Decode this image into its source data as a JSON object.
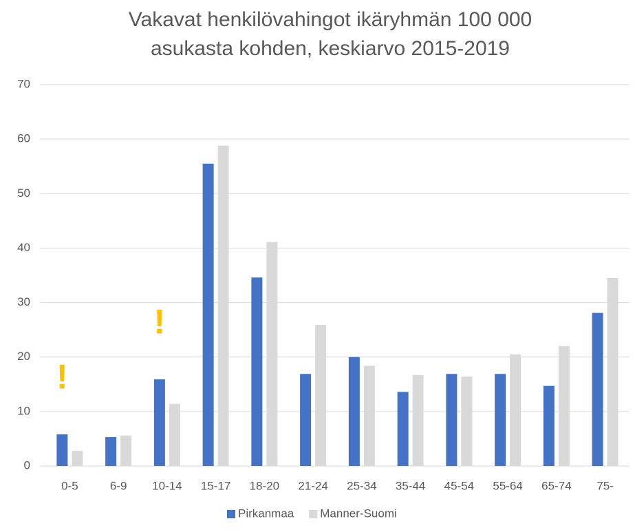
{
  "chart_data": {
    "type": "bar",
    "title": [
      "Vakavat henkilövahingot ikäryhmän 100 000",
      "asukasta kohden, keskiarvo 2015-2019"
    ],
    "categories": [
      "0-5",
      "6-9",
      "10-14",
      "15-17",
      "18-20",
      "21-24",
      "25-34",
      "35-44",
      "45-54",
      "55-64",
      "65-74",
      "75-"
    ],
    "series": [
      {
        "name": "Pirkanmaa",
        "color": "#4472c4",
        "values": [
          5.8,
          5.3,
          15.9,
          55.5,
          34.6,
          16.9,
          20.0,
          13.6,
          16.9,
          16.9,
          14.7,
          28.1
        ]
      },
      {
        "name": "Manner-Suomi",
        "color": "#d9d9d9",
        "values": [
          2.8,
          5.6,
          11.4,
          58.8,
          41.1,
          25.9,
          18.4,
          16.7,
          16.4,
          20.5,
          22.0,
          34.5
        ]
      }
    ],
    "annotations": [
      {
        "text": "!",
        "category": "0-5"
      },
      {
        "text": "!",
        "category": "10-14"
      }
    ],
    "ylim": [
      0,
      70
    ],
    "yticks": [
      0,
      10,
      20,
      30,
      40,
      50,
      60,
      70
    ],
    "grid": true,
    "legend": "bottom"
  }
}
